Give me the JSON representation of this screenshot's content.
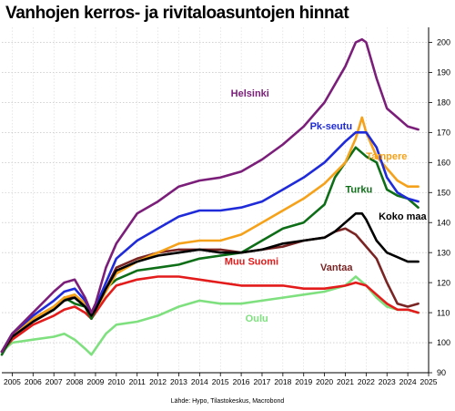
{
  "chart_data": {
    "type": "line",
    "title": "Vanhojen kerros- ja rivitaloasuntojen hinnat",
    "source": "Lähde: Hypo, Tilastokeskus, Macrobond",
    "xlabel": "",
    "ylabel": "",
    "xlim": [
      2004.5,
      2025.0
    ],
    "ylim": [
      90,
      205
    ],
    "yticks": [
      90,
      100,
      110,
      120,
      130,
      140,
      150,
      160,
      170,
      180,
      190,
      200
    ],
    "xticks": [
      2005,
      2006,
      2007,
      2008,
      2009,
      2010,
      2011,
      2012,
      2013,
      2014,
      2015,
      2016,
      2017,
      2018,
      2019,
      2020,
      2021,
      2022,
      2023,
      2024,
      2025
    ],
    "grid": true,
    "legend": "inline-labels",
    "series": [
      {
        "name": "Helsinki",
        "color": "#7B1E7A",
        "x": [
          2004.5,
          2005,
          2006,
          2007,
          2007.5,
          2008,
          2008.5,
          2008.8,
          2009,
          2009.5,
          2010,
          2011,
          2012,
          2013,
          2014,
          2015,
          2016,
          2017,
          2018,
          2019,
          2020,
          2021,
          2021.5,
          2021.8,
          2022,
          2022.5,
          2023,
          2023.5,
          2024,
          2024.5
        ],
        "y": [
          97,
          103,
          110,
          117,
          120,
          121,
          115,
          110,
          113,
          125,
          133,
          143,
          147,
          152,
          154,
          155,
          157,
          161,
          166,
          172,
          180,
          192,
          200,
          201,
          200,
          188,
          178,
          175,
          172,
          171
        ]
      },
      {
        "name": "Pk-seutu",
        "color": "#1F2BD9",
        "x": [
          2004.5,
          2005,
          2006,
          2007,
          2007.5,
          2008,
          2008.5,
          2008.8,
          2009,
          2009.5,
          2010,
          2011,
          2012,
          2013,
          2014,
          2015,
          2016,
          2017,
          2018,
          2019,
          2020,
          2021,
          2021.5,
          2022,
          2022.5,
          2023,
          2023.5,
          2024,
          2024.5
        ],
        "y": [
          97,
          103,
          109,
          114,
          117,
          118,
          114,
          110,
          112,
          120,
          128,
          134,
          138,
          142,
          144,
          144,
          145,
          147,
          151,
          155,
          160,
          167,
          170,
          170,
          165,
          155,
          150,
          148,
          147
        ]
      },
      {
        "name": "Tampere",
        "color": "#F5A21A",
        "x": [
          2004.5,
          2005,
          2006,
          2007,
          2007.5,
          2008,
          2008.5,
          2008.8,
          2009,
          2009.5,
          2010,
          2011,
          2012,
          2013,
          2014,
          2015,
          2016,
          2017,
          2018,
          2019,
          2020,
          2021,
          2021.5,
          2021.8,
          2022,
          2022.5,
          2023,
          2023.5,
          2024,
          2024.5
        ],
        "y": [
          97,
          102,
          108,
          112,
          115,
          116,
          113,
          109,
          111,
          117,
          123,
          127,
          130,
          133,
          134,
          134,
          136,
          140,
          144,
          148,
          153,
          160,
          168,
          175,
          170,
          162,
          158,
          154,
          152,
          152
        ]
      },
      {
        "name": "Turku",
        "color": "#0E6E18",
        "x": [
          2004.5,
          2005,
          2006,
          2007,
          2007.5,
          2008,
          2008.5,
          2008.8,
          2009,
          2009.5,
          2010,
          2011,
          2012,
          2013,
          2014,
          2015,
          2016,
          2017,
          2018,
          2019,
          2020,
          2020.5,
          2021,
          2021.5,
          2022,
          2022.5,
          2023,
          2023.5,
          2024,
          2024.5
        ],
        "y": [
          96,
          102,
          107,
          111,
          115,
          113,
          112,
          108,
          111,
          118,
          121,
          124,
          125,
          126,
          128,
          129,
          130,
          134,
          138,
          140,
          146,
          155,
          160,
          165,
          162,
          160,
          151,
          149,
          148,
          145
        ]
      },
      {
        "name": "Koko maa",
        "color": "#000000",
        "x": [
          2004.5,
          2005,
          2006,
          2007,
          2007.5,
          2008,
          2008.5,
          2008.8,
          2009,
          2009.5,
          2010,
          2011,
          2012,
          2013,
          2014,
          2015,
          2016,
          2017,
          2018,
          2019,
          2020,
          2020.5,
          2021,
          2021.5,
          2021.8,
          2022,
          2022.5,
          2023,
          2024,
          2024.5
        ],
        "y": [
          97,
          102,
          107,
          111,
          114,
          115,
          112,
          109,
          111,
          118,
          124,
          127,
          129,
          130,
          131,
          130,
          130,
          131,
          133,
          134,
          135,
          137,
          140,
          143,
          143,
          141,
          134,
          130,
          127,
          127
        ]
      },
      {
        "name": "Vantaa",
        "color": "#7A2424",
        "x": [
          2004.5,
          2005,
          2006,
          2007,
          2007.5,
          2008,
          2008.5,
          2008.8,
          2009,
          2009.5,
          2010,
          2011,
          2012,
          2013,
          2014,
          2015,
          2016,
          2017,
          2018,
          2019,
          2020,
          2020.5,
          2021,
          2021.5,
          2022,
          2022.5,
          2023,
          2023.5,
          2024,
          2024.5
        ],
        "y": [
          97,
          103,
          108,
          112,
          115,
          115,
          112,
          108,
          111,
          118,
          125,
          128,
          130,
          131,
          131,
          131,
          130,
          131,
          132,
          134,
          135,
          137,
          138,
          136,
          132,
          128,
          120,
          113,
          112,
          113
        ]
      },
      {
        "name": "Muu Suomi",
        "color": "#E31B1B",
        "x": [
          2004.5,
          2005,
          2006,
          2007,
          2007.5,
          2008,
          2008.5,
          2008.8,
          2009,
          2009.5,
          2010,
          2011,
          2012,
          2013,
          2014,
          2015,
          2016,
          2017,
          2018,
          2019,
          2020,
          2021,
          2021.5,
          2022,
          2022.5,
          2023,
          2023.5,
          2024,
          2024.5
        ],
        "y": [
          97,
          101,
          106,
          109,
          111,
          112,
          110,
          108,
          110,
          115,
          119,
          121,
          122,
          122,
          121,
          120,
          119,
          119,
          119,
          118,
          118,
          119,
          120,
          119,
          116,
          113,
          111,
          111,
          110
        ]
      },
      {
        "name": "Oulu",
        "color": "#7FE07F",
        "x": [
          2004.5,
          2005,
          2006,
          2007,
          2007.5,
          2008,
          2008.5,
          2008.8,
          2009,
          2009.5,
          2010,
          2011,
          2012,
          2013,
          2014,
          2015,
          2016,
          2017,
          2018,
          2019,
          2020,
          2021,
          2021.5,
          2022,
          2022.5,
          2023,
          2023.5,
          2024,
          2024.5
        ],
        "y": [
          97,
          100,
          101,
          102,
          103,
          101,
          98,
          96,
          98,
          103,
          106,
          107,
          109,
          112,
          114,
          113,
          113,
          114,
          115,
          116,
          117,
          119,
          122,
          119,
          115,
          112,
          111,
          111,
          110
        ]
      }
    ]
  }
}
